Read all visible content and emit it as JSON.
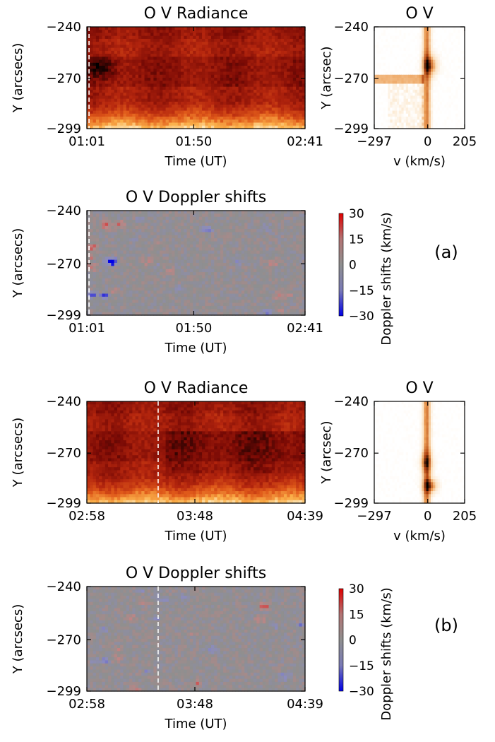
{
  "chart_data": [
    {
      "type": "heatmap",
      "title": "O V Radiance",
      "xlabel": "Time (UT)",
      "ylabel": "Y (arcsecs)",
      "x_ticks": [
        "01:01",
        "01:50",
        "02:41"
      ],
      "y_ticks": [
        "-240",
        "-270",
        "-299"
      ],
      "ylim": [
        -299,
        -240
      ],
      "colormap": [
        "#000000",
        "#7a0a05",
        "#b5260e",
        "#e05a1a",
        "#fbb04a",
        "#fff7d8"
      ],
      "marker_time": "01:02",
      "panel_group": "a"
    },
    {
      "type": "heatmap",
      "title": "O V",
      "xlabel": "v (km/s)",
      "ylabel": "Y (arcsec)",
      "x_ticks": [
        "-297",
        "0",
        "205"
      ],
      "y_ticks": [
        "-240",
        "-270",
        "-299"
      ],
      "xlim": [
        -297,
        205
      ],
      "ylim": [
        -299,
        -240
      ],
      "colormap": [
        "#ffffff",
        "#fbe3c4",
        "#eb9d55",
        "#b04210",
        "#000000"
      ],
      "panel_group": "a"
    },
    {
      "type": "heatmap",
      "title": "O V Doppler shifts",
      "xlabel": "Time (UT)",
      "ylabel": "Y (arcsecs)",
      "x_ticks": [
        "01:01",
        "01:50",
        "02:41"
      ],
      "y_ticks": [
        "-240",
        "-270",
        "-299"
      ],
      "ylim": [
        -299,
        -240
      ],
      "colorbar": {
        "label": "Doppler shifts (km/s)",
        "ticks": [
          "30",
          "15",
          "0",
          "−15",
          "−30"
        ],
        "range": [
          -30,
          30
        ]
      },
      "colormap": [
        "#0000e6",
        "#8c8cbf",
        "#8f8f8f",
        "#c08585",
        "#e00000"
      ],
      "marker_time": "01:02",
      "panel_label": "(a)"
    },
    {
      "type": "heatmap",
      "title": "O V Radiance",
      "xlabel": "Time (UT)",
      "ylabel": "Y (arcsecs)",
      "x_ticks": [
        "02:58",
        "03:48",
        "04:39"
      ],
      "y_ticks": [
        "-240",
        "-270",
        "-299"
      ],
      "ylim": [
        -299,
        -240
      ],
      "colormap": [
        "#000000",
        "#7a0a05",
        "#b5260e",
        "#e05a1a",
        "#fbb04a",
        "#fff7d8"
      ],
      "marker_time": "03:31",
      "panel_group": "b"
    },
    {
      "type": "heatmap",
      "title": "O V",
      "xlabel": "v (km/s)",
      "ylabel": "Y (arcsec)",
      "x_ticks": [
        "-297",
        "0",
        "205"
      ],
      "y_ticks": [
        "-240",
        "-270",
        "-299"
      ],
      "xlim": [
        -297,
        205
      ],
      "ylim": [
        -299,
        -240
      ],
      "colormap": [
        "#ffffff",
        "#fbe3c4",
        "#eb9d55",
        "#b04210",
        "#000000"
      ],
      "panel_group": "b"
    },
    {
      "type": "heatmap",
      "title": "O V Doppler shifts",
      "xlabel": "Time (UT)",
      "ylabel": "Y (arcsecs)",
      "x_ticks": [
        "02:58",
        "03:48",
        "04:39"
      ],
      "y_ticks": [
        "-240",
        "-270",
        "-299"
      ],
      "ylim": [
        -299,
        -240
      ],
      "colorbar": {
        "label": "Doppler shifts (km/s)",
        "ticks": [
          "30",
          "15",
          "0",
          "−15",
          "−30"
        ],
        "range": [
          -30,
          30
        ]
      },
      "colormap": [
        "#0000e6",
        "#8c8cbf",
        "#8f8f8f",
        "#c08585",
        "#e00000"
      ],
      "marker_time": "03:31",
      "panel_label": "(b)"
    }
  ]
}
